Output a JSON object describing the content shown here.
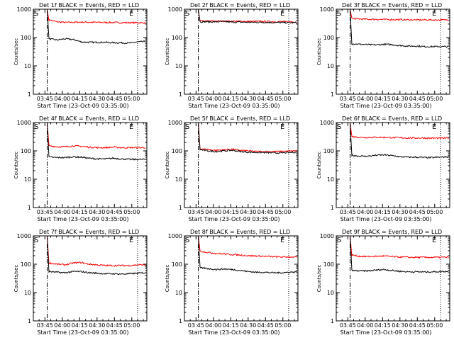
{
  "chart_data": [
    {
      "type": "line",
      "title": "Det 1f BLACK = Events, RED = LLD",
      "xlabel": "Start Time (23-Oct-09 03:35:00)",
      "ylabel": "Counts/sec",
      "ylog": true,
      "ylim": [
        1,
        1000
      ],
      "xlim": [
        "03:35",
        "05:13"
      ],
      "x_ticks": [
        "03:45",
        "04:00",
        "04:15",
        "04:30",
        "04:45",
        "05:00"
      ],
      "y_ticks": [
        "1",
        "10",
        "100",
        "1000"
      ],
      "start_marker": "S",
      "end_marker": "E",
      "start_time": "03:47",
      "end_time": "05:05",
      "series": [
        {
          "color": "#ff0000",
          "values": [
            420,
            360,
            340,
            345,
            350,
            345,
            345,
            340,
            340,
            335,
            335,
            335,
            330
          ]
        },
        {
          "color": "#000000",
          "values": [
            90,
            82,
            90,
            85,
            70,
            68,
            68,
            68,
            66,
            65,
            64,
            70,
            72
          ]
        }
      ]
    },
    {
      "type": "line",
      "title": "Det 2f BLACK = Events, RED = LLD",
      "xlabel": "Start Time (23-Oct-09 03:35:00)",
      "ylabel": "Counts/sec",
      "ylog": true,
      "ylim": [
        1,
        1000
      ],
      "xlim": [
        "03:35",
        "05:13"
      ],
      "x_ticks": [
        "03:45",
        "04:00",
        "04:15",
        "04:30",
        "04:45",
        "05:00"
      ],
      "y_ticks": [
        "1",
        "10",
        "100",
        "1000"
      ],
      "start_marker": "S",
      "end_marker": "E",
      "start_time": "03:47",
      "end_time": "05:05",
      "series": [
        {
          "color": "#ff0000",
          "values": [
            380,
            380,
            380,
            380,
            375,
            375,
            370,
            370,
            370,
            365,
            365,
            360,
            360
          ]
        },
        {
          "color": "#000000",
          "values": [
            360,
            360,
            360,
            365,
            350,
            350,
            345,
            345,
            345,
            340,
            340,
            335,
            335
          ]
        }
      ]
    },
    {
      "type": "line",
      "title": "Det 3f BLACK = Events, RED = LLD",
      "xlabel": "Start Time (23-Oct-09 03:35:00)",
      "ylabel": "Counts/sec",
      "ylog": true,
      "ylim": [
        1,
        1000
      ],
      "xlim": [
        "03:35",
        "05:13"
      ],
      "x_ticks": [
        "03:45",
        "04:00",
        "04:15",
        "04:30",
        "04:45",
        "05:00"
      ],
      "y_ticks": [
        "1",
        "10",
        "100",
        "1000"
      ],
      "start_marker": "S",
      "end_marker": "E",
      "start_time": "03:47",
      "end_time": "05:05",
      "series": [
        {
          "color": "#ff0000",
          "values": [
            470,
            450,
            440,
            440,
            435,
            430,
            430,
            425,
            420,
            420,
            420,
            420,
            420
          ]
        },
        {
          "color": "#000000",
          "values": [
            60,
            58,
            56,
            55,
            58,
            56,
            52,
            50,
            50,
            48,
            48,
            48,
            48
          ]
        }
      ]
    },
    {
      "type": "line",
      "title": "Det 4f BLACK = Events, RED = LLD",
      "xlabel": "Start Time (23-Oct-09 03:35:00)",
      "ylabel": "Counts/sec",
      "ylog": true,
      "ylim": [
        1,
        1000
      ],
      "xlim": [
        "03:35",
        "05:13"
      ],
      "x_ticks": [
        "03:45",
        "04:00",
        "04:15",
        "04:30",
        "04:45",
        "05:00"
      ],
      "y_ticks": [
        "1",
        "10",
        "100",
        "1000"
      ],
      "start_marker": "S",
      "end_marker": "E",
      "start_time": "03:47",
      "end_time": "05:05",
      "series": [
        {
          "color": "#ff0000",
          "values": [
            150,
            140,
            140,
            150,
            145,
            135,
            130,
            130,
            135,
            130,
            130,
            130,
            130
          ]
        },
        {
          "color": "#000000",
          "values": [
            60,
            58,
            58,
            62,
            60,
            55,
            52,
            52,
            55,
            52,
            50,
            50,
            50
          ]
        }
      ]
    },
    {
      "type": "line",
      "title": "Det 5f BLACK = Events, RED = LLD",
      "xlabel": "Start Time (23-Oct-09 03:35:00)",
      "ylabel": "Counts/sec",
      "ylog": true,
      "ylim": [
        1,
        1000
      ],
      "xlim": [
        "03:35",
        "05:13"
      ],
      "x_ticks": [
        "03:45",
        "04:00",
        "04:15",
        "04:30",
        "04:45",
        "05:00"
      ],
      "y_ticks": [
        "1",
        "10",
        "100",
        "1000"
      ],
      "start_marker": "S",
      "end_marker": "E",
      "start_time": "03:47",
      "end_time": "05:05",
      "series": [
        {
          "color": "#ff0000",
          "values": [
            120,
            110,
            105,
            110,
            115,
            105,
            100,
            95,
            95,
            95,
            95,
            98,
            100
          ]
        },
        {
          "color": "#000000",
          "values": [
            110,
            100,
            95,
            100,
            105,
            95,
            90,
            88,
            88,
            85,
            85,
            88,
            90
          ]
        }
      ]
    },
    {
      "type": "line",
      "title": "Det 6f BLACK = Events, RED = LLD",
      "xlabel": "Start Time (23-Oct-09 03:35:00)",
      "ylabel": "Counts/sec",
      "ylog": true,
      "ylim": [
        1,
        1000
      ],
      "xlim": [
        "03:35",
        "05:13"
      ],
      "x_ticks": [
        "03:45",
        "04:00",
        "04:15",
        "04:30",
        "04:45",
        "05:00"
      ],
      "y_ticks": [
        "1",
        "10",
        "100",
        "1000"
      ],
      "start_marker": "S",
      "end_marker": "E",
      "start_time": "03:47",
      "end_time": "05:05",
      "series": [
        {
          "color": "#ff0000",
          "values": [
            320,
            300,
            300,
            300,
            300,
            295,
            290,
            285,
            285,
            285,
            280,
            280,
            280
          ]
        },
        {
          "color": "#000000",
          "values": [
            70,
            65,
            65,
            70,
            72,
            68,
            62,
            60,
            60,
            58,
            58,
            60,
            62
          ]
        }
      ]
    },
    {
      "type": "line",
      "title": "Det 7f BLACK = Events, RED = LLD",
      "xlabel": "Start Time (23-Oct-09 03:35:00)",
      "ylabel": "Counts/sec",
      "ylog": true,
      "ylim": [
        1,
        1000
      ],
      "xlim": [
        "03:35",
        "05:13"
      ],
      "x_ticks": [
        "03:45",
        "04:00",
        "04:15",
        "04:30",
        "04:45",
        "05:00"
      ],
      "y_ticks": [
        "1",
        "10",
        "100",
        "1000"
      ],
      "start_marker": "S",
      "end_marker": "E",
      "start_time": "03:47",
      "end_time": "05:05",
      "series": [
        {
          "color": "#ff0000",
          "values": [
            110,
            100,
            95,
            110,
            115,
            100,
            95,
            90,
            90,
            90,
            90,
            95,
            95
          ]
        },
        {
          "color": "#000000",
          "values": [
            55,
            52,
            50,
            55,
            55,
            50,
            48,
            46,
            46,
            45,
            46,
            48,
            50
          ]
        }
      ]
    },
    {
      "type": "line",
      "title": "Det 8f BLACK = Events, RED = LLD",
      "xlabel": "Start Time (23-Oct-09 03:35:00)",
      "ylabel": "Counts/sec",
      "ylog": true,
      "ylim": [
        1,
        1000
      ],
      "xlim": [
        "03:35",
        "05:13"
      ],
      "x_ticks": [
        "03:45",
        "04:00",
        "04:15",
        "04:30",
        "04:45",
        "05:00"
      ],
      "y_ticks": [
        "1",
        "10",
        "100",
        "1000"
      ],
      "start_marker": "S",
      "end_marker": "E",
      "start_time": "03:47",
      "end_time": "05:05",
      "series": [
        {
          "color": "#ff0000",
          "values": [
            290,
            260,
            240,
            230,
            220,
            210,
            200,
            195,
            190,
            185,
            180,
            180,
            180
          ]
        },
        {
          "color": "#000000",
          "values": [
            75,
            70,
            65,
            68,
            65,
            60,
            55,
            52,
            52,
            50,
            50,
            52,
            54
          ]
        }
      ]
    },
    {
      "type": "line",
      "title": "Det 9f BLACK = Events, RED = LLD",
      "xlabel": "Start Time (23-Oct-09 03:35:00)",
      "ylabel": "Counts/sec",
      "ylog": true,
      "ylim": [
        1,
        1000
      ],
      "xlim": [
        "03:35",
        "05:13"
      ],
      "x_ticks": [
        "03:45",
        "04:00",
        "04:15",
        "04:30",
        "04:45",
        "05:00"
      ],
      "y_ticks": [
        "1",
        "10",
        "100",
        "1000"
      ],
      "start_marker": "S",
      "end_marker": "E",
      "start_time": "03:47",
      "end_time": "05:05",
      "series": [
        {
          "color": "#ff0000",
          "values": [
            210,
            190,
            185,
            190,
            195,
            185,
            180,
            175,
            175,
            175,
            175,
            175,
            175
          ]
        },
        {
          "color": "#000000",
          "values": [
            60,
            58,
            58,
            62,
            65,
            60,
            56,
            54,
            54,
            53,
            54,
            55,
            56
          ]
        }
      ]
    }
  ]
}
